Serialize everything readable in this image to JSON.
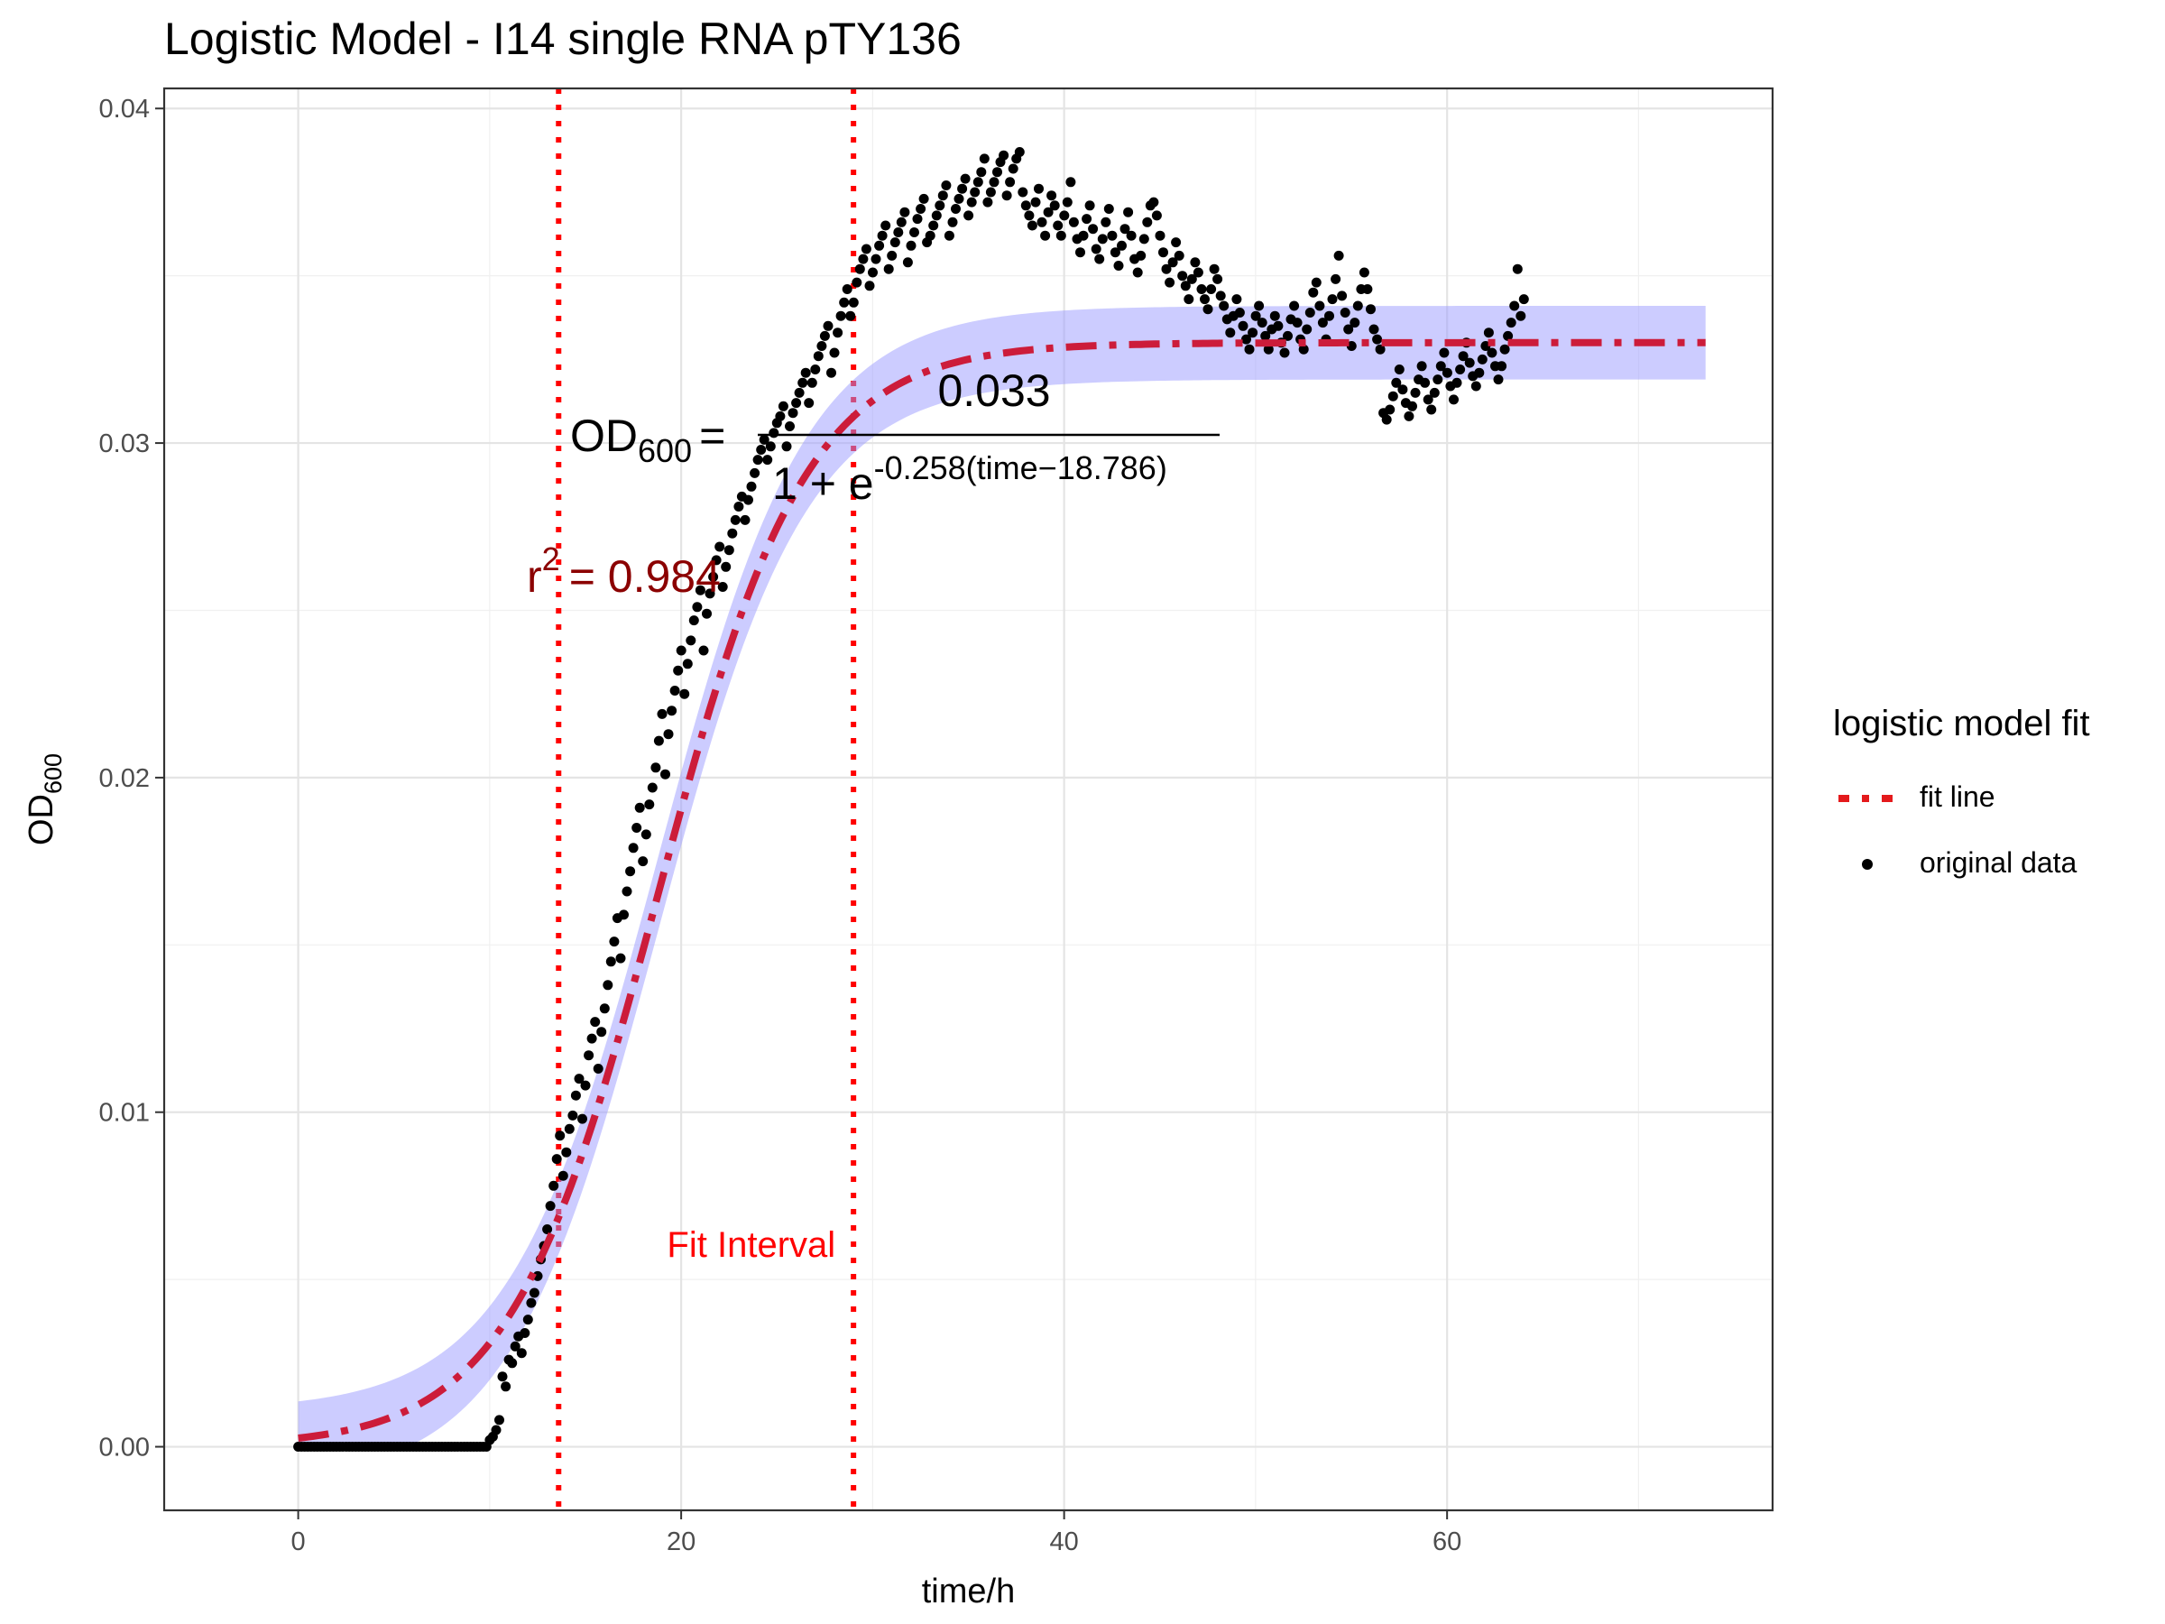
{
  "chart_data": {
    "type": "scatter",
    "title": "Logistic Model -  I14 single RNA pTY136",
    "xlabel": "time/h",
    "ylabel": "OD",
    "ylabel_sub": "600",
    "xlim": [
      -7,
      77
    ],
    "ylim": [
      -0.0019,
      0.0406
    ],
    "x_ticks": [
      0,
      20,
      40,
      60
    ],
    "y_ticks": [
      0.0,
      0.01,
      0.02,
      0.03,
      0.04
    ],
    "y_tick_labels": [
      "0.00",
      "0.01",
      "0.02",
      "0.03",
      "0.04"
    ],
    "grid": true,
    "legend": {
      "title": "logistic model fit",
      "position": "right",
      "entries": [
        {
          "label": "fit line",
          "color": "#e41a1c",
          "style": "dotdash"
        },
        {
          "label": "original data",
          "color": "#000000",
          "style": "point"
        }
      ]
    },
    "fit": {
      "K": 0.033,
      "r": 0.258,
      "t0": 18.786,
      "color": "#cc1c3a",
      "band_color": "#9999ff",
      "band_halfwidth": 0.0011
    },
    "fit_interval": [
      13.6,
      29.0
    ],
    "fit_interval_label": "Fit Interval",
    "equation": {
      "lhs": "OD",
      "lhs_sub": "600",
      "numerator": "0.033",
      "denominator_prefix": "1 + e",
      "exponent": "-0.258(time−18.786)"
    },
    "r_squared": {
      "prefix": "r",
      "superscript": "2",
      "value": "= 0.984",
      "color": "#8b0000"
    },
    "series": [
      {
        "type": "scatter",
        "name": "original data",
        "color": "#000000",
        "x_start": 0,
        "x_step": 0.1667,
        "y": [
          0,
          0,
          0,
          0,
          0,
          0,
          0,
          0,
          0,
          0,
          0,
          0,
          0,
          0,
          0,
          0,
          0,
          0,
          0,
          0,
          0,
          0,
          0,
          0,
          0,
          0,
          0,
          0,
          0,
          0,
          0,
          0,
          0,
          0,
          0,
          0,
          0,
          0,
          0,
          0,
          0,
          0,
          0,
          0,
          0,
          0,
          0,
          0,
          0,
          0,
          0,
          0,
          0,
          0,
          0,
          0,
          0,
          0,
          0,
          0,
          0.0002,
          0.0003,
          0.0005,
          0.0008,
          0.0021,
          0.0018,
          0.0026,
          0.0025,
          0.003,
          0.0033,
          0.0028,
          0.0034,
          0.0038,
          0.0043,
          0.0046,
          0.0051,
          0.0056,
          0.006,
          0.0065,
          0.0072,
          0.0078,
          0.0086,
          0.0093,
          0.0081,
          0.0088,
          0.0095,
          0.0099,
          0.0105,
          0.011,
          0.0098,
          0.0108,
          0.0117,
          0.0122,
          0.0127,
          0.0113,
          0.0124,
          0.0131,
          0.0138,
          0.0145,
          0.0151,
          0.0158,
          0.0146,
          0.0159,
          0.0166,
          0.0172,
          0.0179,
          0.0185,
          0.0191,
          0.0175,
          0.0183,
          0.0192,
          0.0197,
          0.0203,
          0.0211,
          0.0219,
          0.0201,
          0.0213,
          0.022,
          0.0226,
          0.0232,
          0.0238,
          0.0225,
          0.0234,
          0.0241,
          0.0247,
          0.0251,
          0.0256,
          0.0238,
          0.0249,
          0.0255,
          0.026,
          0.0265,
          0.0269,
          0.0257,
          0.0263,
          0.0268,
          0.0273,
          0.0277,
          0.0281,
          0.0284,
          0.0277,
          0.0283,
          0.0287,
          0.0291,
          0.0295,
          0.0298,
          0.0301,
          0.0295,
          0.0299,
          0.0303,
          0.0306,
          0.0308,
          0.0311,
          0.0299,
          0.0305,
          0.0309,
          0.0312,
          0.0315,
          0.0318,
          0.0321,
          0.0312,
          0.0318,
          0.0322,
          0.0326,
          0.0329,
          0.0332,
          0.0335,
          0.0321,
          0.0327,
          0.0333,
          0.0338,
          0.0342,
          0.0346,
          0.0338,
          0.0342,
          0.0348,
          0.0352,
          0.0355,
          0.0358,
          0.0347,
          0.0351,
          0.0355,
          0.0359,
          0.0362,
          0.0365,
          0.0352,
          0.0356,
          0.036,
          0.0363,
          0.0366,
          0.0369,
          0.0354,
          0.0359,
          0.0363,
          0.0367,
          0.037,
          0.0373,
          0.036,
          0.0362,
          0.0365,
          0.0368,
          0.0371,
          0.0374,
          0.0377,
          0.0362,
          0.0366,
          0.037,
          0.0373,
          0.0376,
          0.0379,
          0.0368,
          0.0372,
          0.0375,
          0.0378,
          0.0381,
          0.0385,
          0.0372,
          0.0375,
          0.0378,
          0.0381,
          0.0384,
          0.0386,
          0.0374,
          0.0378,
          0.0382,
          0.0385,
          0.0387,
          0.0375,
          0.0371,
          0.0368,
          0.0365,
          0.0372,
          0.0376,
          0.0366,
          0.0362,
          0.0369,
          0.0374,
          0.0371,
          0.0365,
          0.0362,
          0.0368,
          0.0372,
          0.0378,
          0.0366,
          0.0361,
          0.0357,
          0.0362,
          0.0367,
          0.0371,
          0.0364,
          0.0358,
          0.0355,
          0.0361,
          0.0366,
          0.037,
          0.0362,
          0.0357,
          0.0353,
          0.0359,
          0.0364,
          0.0369,
          0.0362,
          0.0355,
          0.0351,
          0.0356,
          0.0361,
          0.0366,
          0.0371,
          0.0372,
          0.0368,
          0.0362,
          0.0357,
          0.0352,
          0.0348,
          0.0354,
          0.036,
          0.0356,
          0.035,
          0.0347,
          0.0343,
          0.0349,
          0.0354,
          0.0351,
          0.0346,
          0.0343,
          0.034,
          0.0346,
          0.0352,
          0.0349,
          0.0344,
          0.0341,
          0.0337,
          0.0333,
          0.0338,
          0.0343,
          0.0339,
          0.0335,
          0.0331,
          0.0328,
          0.0333,
          0.0338,
          0.0341,
          0.0336,
          0.0332,
          0.0328,
          0.0334,
          0.0338,
          0.0335,
          0.033,
          0.0327,
          0.0332,
          0.0337,
          0.0341,
          0.0336,
          0.0331,
          0.0328,
          0.0334,
          0.0339,
          0.0345,
          0.0348,
          0.0341,
          0.0336,
          0.0331,
          0.0338,
          0.0343,
          0.0349,
          0.0356,
          0.0344,
          0.0339,
          0.0334,
          0.0329,
          0.0336,
          0.0341,
          0.0346,
          0.0351,
          0.0346,
          0.034,
          0.0334,
          0.0331,
          0.0328,
          0.0309,
          0.0307,
          0.031,
          0.0314,
          0.0318,
          0.0322,
          0.0316,
          0.0312,
          0.0308,
          0.0311,
          0.0315,
          0.0319,
          0.0323,
          0.0318,
          0.0313,
          0.031,
          0.0315,
          0.0319,
          0.0323,
          0.0327,
          0.0321,
          0.0317,
          0.0313,
          0.0318,
          0.0322,
          0.0326,
          0.033,
          0.0324,
          0.032,
          0.0317,
          0.0321,
          0.0325,
          0.0329,
          0.0333,
          0.0327,
          0.0323,
          0.0319,
          0.0323,
          0.0328,
          0.0332,
          0.0336,
          0.0341,
          0.0352,
          0.0338,
          0.0343
        ]
      }
    ]
  }
}
